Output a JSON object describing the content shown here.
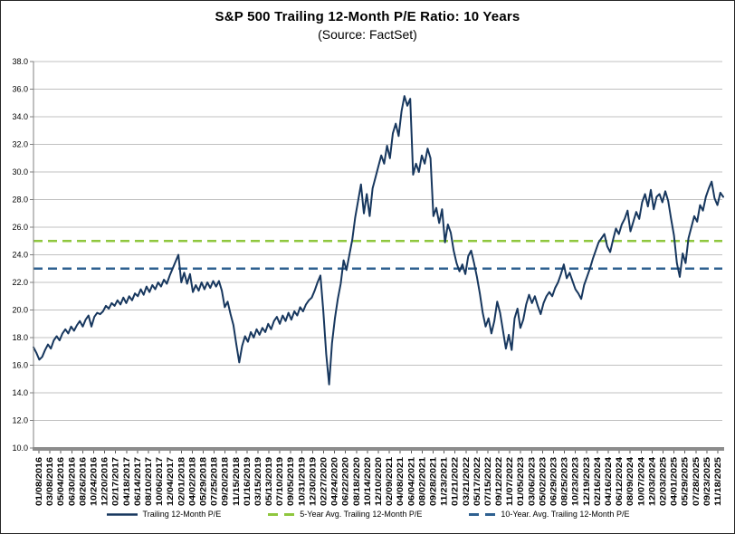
{
  "chart_data": {
    "type": "line",
    "title": "S&P 500 Trailing 12-Month P/E Ratio: 10 Years",
    "subtitle": "(Source: FactSet)",
    "ylim": [
      10,
      38
    ],
    "y_tick_step": 2,
    "grid": true,
    "legend_position": "bottom",
    "grid_color": "#C0C0C0",
    "axis_color": "#808080",
    "axis_bar_color": "#8C8C8C",
    "y_tick_labels": [
      "38.0",
      "36.0",
      "34.0",
      "32.0",
      "30.0",
      "28.0",
      "26.0",
      "24.0",
      "22.0",
      "20.0",
      "18.0",
      "16.0",
      "14.0",
      "12.0",
      "10.0"
    ],
    "x_tick_labels": [
      "01/08/2016",
      "03/08/2016",
      "05/04/2016",
      "06/30/2016",
      "08/26/2016",
      "10/24/2016",
      "12/20/2016",
      "02/17/2017",
      "04/18/2017",
      "06/14/2017",
      "08/10/2017",
      "10/06/2017",
      "12/04/2017",
      "02/01/2018",
      "04/02/2018",
      "05/29/2018",
      "07/25/2018",
      "09/20/2018",
      "11/15/2018",
      "01/16/2019",
      "03/15/2019",
      "05/13/2019",
      "07/10/2019",
      "09/05/2019",
      "10/31/2019",
      "12/30/2019",
      "02/27/2020",
      "04/24/2020",
      "06/22/2020",
      "08/18/2020",
      "10/14/2020",
      "12/10/2020",
      "02/09/2021",
      "04/08/2021",
      "06/04/2021",
      "08/02/2021",
      "09/28/2021",
      "11/23/2021",
      "01/21/2022",
      "03/21/2022",
      "05/17/2022",
      "07/15/2022",
      "09/12/2022",
      "11/07/2022",
      "01/05/2023",
      "03/06/2023",
      "05/02/2023",
      "06/29/2023",
      "08/25/2023",
      "10/23/2023",
      "12/19/2023",
      "02/16/2024",
      "04/16/2024",
      "06/12/2024",
      "08/09/2024",
      "10/07/2024",
      "12/03/2024",
      "02/03/2025",
      "04/01/2025",
      "05/29/2025",
      "07/28/2025",
      "09/23/2025",
      "11/18/2025"
    ],
    "series": [
      {
        "name": "Trailing 12-Month P/E",
        "style": "solid",
        "color": "#17375E",
        "values": [
          17.3,
          16.9,
          16.4,
          16.6,
          17.1,
          17.5,
          17.2,
          17.8,
          18.1,
          17.8,
          18.3,
          18.6,
          18.3,
          18.8,
          18.5,
          18.9,
          19.2,
          18.8,
          19.3,
          19.6,
          18.8,
          19.5,
          19.8,
          19.7,
          19.9,
          20.3,
          20.1,
          20.5,
          20.3,
          20.7,
          20.4,
          20.9,
          20.5,
          21.0,
          20.7,
          21.2,
          21.0,
          21.5,
          21.1,
          21.7,
          21.3,
          21.8,
          21.5,
          22.0,
          21.7,
          22.2,
          21.9,
          22.5,
          23.0,
          23.5,
          24.0,
          22.0,
          22.7,
          21.9,
          22.6,
          21.3,
          21.8,
          21.4,
          22.0,
          21.5,
          22.0,
          21.6,
          22.1,
          21.7,
          22.1,
          21.4,
          20.2,
          20.6,
          19.7,
          18.9,
          17.5,
          16.2,
          17.4,
          18.1,
          17.7,
          18.4,
          18.0,
          18.6,
          18.2,
          18.7,
          18.4,
          19.0,
          18.6,
          19.2,
          19.5,
          19.0,
          19.6,
          19.2,
          19.8,
          19.3,
          19.9,
          19.6,
          20.2,
          19.9,
          20.4,
          20.7,
          20.9,
          21.4,
          22.0,
          22.5,
          19.9,
          16.8,
          14.6,
          17.6,
          19.4,
          20.8,
          21.9,
          23.6,
          22.9,
          24.0,
          25.1,
          26.7,
          27.9,
          29.1,
          27.0,
          28.4,
          26.8,
          28.8,
          29.6,
          30.4,
          31.2,
          30.6,
          31.9,
          31.0,
          32.8,
          33.5,
          32.6,
          34.4,
          35.5,
          34.8,
          35.3,
          29.8,
          30.6,
          30.0,
          31.2,
          30.6,
          31.7,
          31.0,
          26.8,
          27.4,
          26.3,
          27.3,
          24.9,
          26.2,
          25.6,
          24.3,
          23.4,
          22.8,
          23.3,
          22.6,
          23.9,
          24.3,
          23.4,
          22.4,
          21.2,
          19.8,
          18.8,
          19.4,
          18.3,
          19.2,
          20.6,
          19.8,
          18.5,
          17.2,
          18.2,
          17.1,
          19.4,
          20.1,
          18.7,
          19.3,
          20.4,
          21.1,
          20.5,
          21.0,
          20.3,
          19.7,
          20.5,
          21.0,
          21.3,
          21.0,
          21.6,
          22.0,
          22.6,
          23.3,
          22.3,
          22.7,
          22.1,
          21.5,
          21.2,
          20.8,
          21.8,
          22.4,
          23.0,
          23.7,
          24.3,
          24.9,
          25.2,
          25.5,
          24.6,
          24.2,
          25.1,
          25.9,
          25.5,
          26.2,
          26.6,
          27.2,
          25.7,
          26.4,
          27.1,
          26.6,
          27.8,
          28.4,
          27.5,
          28.7,
          27.3,
          28.2,
          28.4,
          27.8,
          28.6,
          27.9,
          26.6,
          25.4,
          23.4,
          22.4,
          24.1,
          23.4,
          25.2,
          26.0,
          26.8,
          26.4,
          27.6,
          27.2,
          28.2,
          28.8,
          29.3,
          28.1,
          27.6,
          28.5,
          28.2
        ]
      },
      {
        "name": "5-Year Avg. Trailing 12-Month P/E",
        "style": "dashed",
        "color": "#8FC73E",
        "value": 25.0
      },
      {
        "name": "10-Year. Avg. Trailing 12-Month P/E",
        "style": "dashed",
        "color": "#2E6090",
        "value": 23.0
      }
    ]
  }
}
